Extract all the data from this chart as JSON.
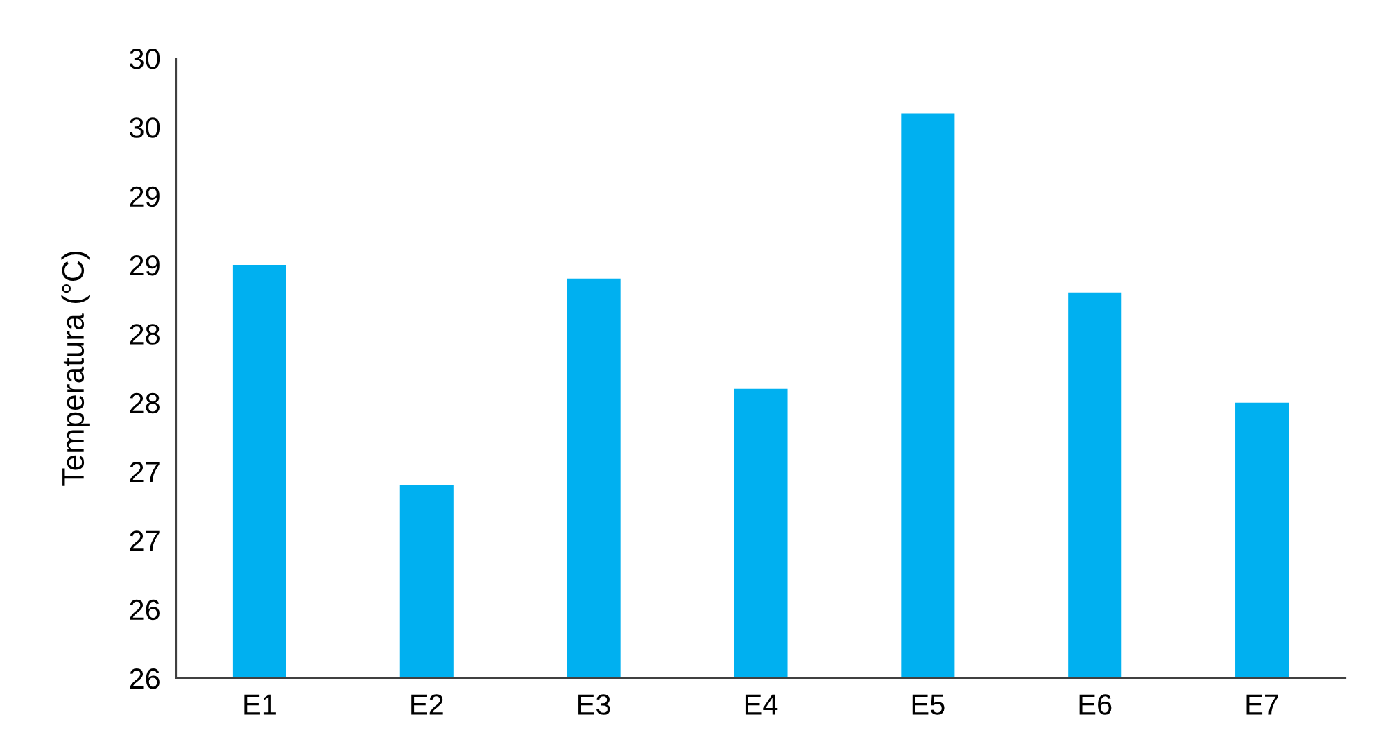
{
  "chart_data": {
    "type": "bar",
    "ylabel": "Temperatura (°C)",
    "categories": [
      "E1",
      "E2",
      "E3",
      "E4",
      "E5",
      "E6",
      "E7"
    ],
    "values": [
      28.5,
      26.9,
      28.4,
      27.6,
      29.6,
      28.3,
      27.5
    ],
    "color": "#00b0f0",
    "ylim": [
      25.5,
      30
    ],
    "yticks": [
      {
        "value": 25.5,
        "label": "26"
      },
      {
        "value": 26,
        "label": "26"
      },
      {
        "value": 26.5,
        "label": "27"
      },
      {
        "value": 27,
        "label": "27"
      },
      {
        "value": 27.5,
        "label": "28"
      },
      {
        "value": 28,
        "label": "28"
      },
      {
        "value": 28.5,
        "label": "29"
      },
      {
        "value": 29,
        "label": "29"
      },
      {
        "value": 29.5,
        "label": "30"
      },
      {
        "value": 30,
        "label": "30"
      }
    ],
    "grid": false
  }
}
